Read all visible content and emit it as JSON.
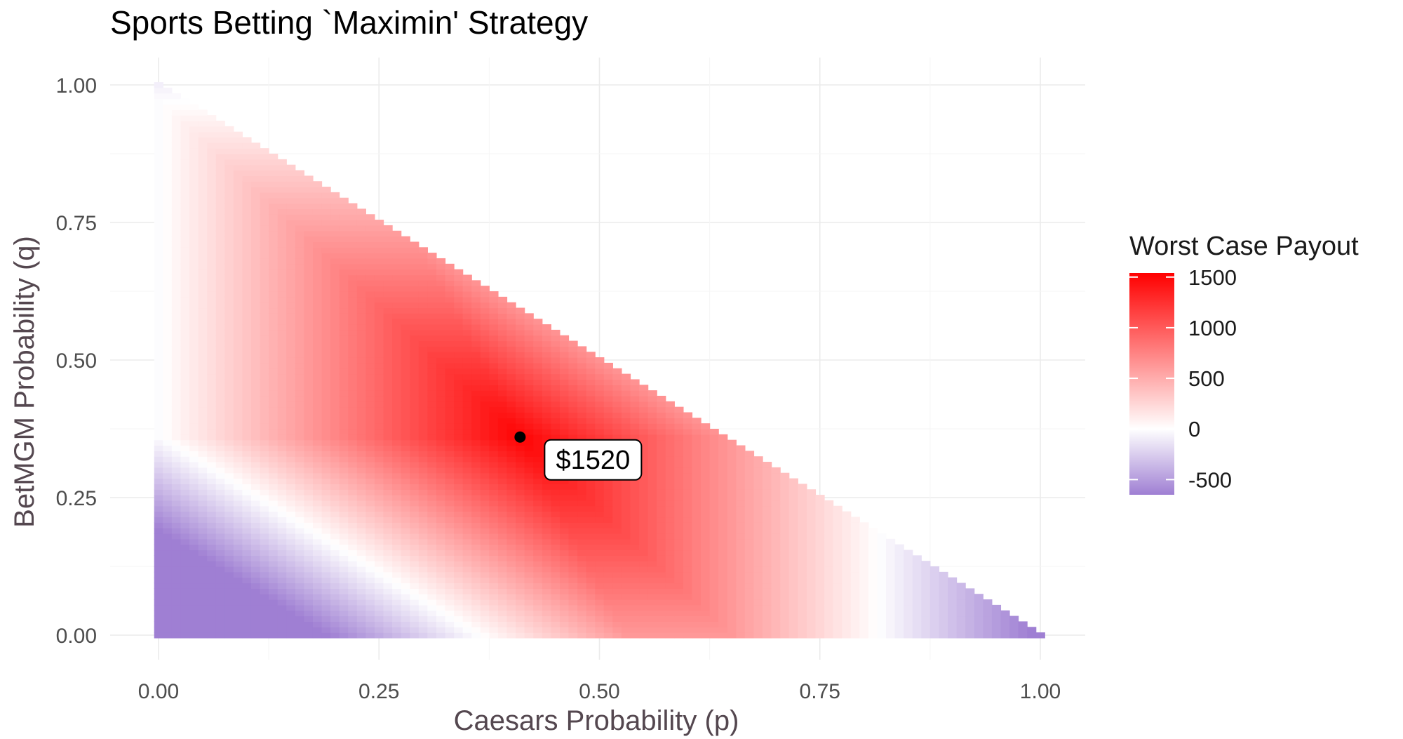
{
  "chart_data": {
    "type": "heatmap",
    "title": "Sports Betting `Maximin' Strategy",
    "xlabel": "Caesars Probability (p)",
    "ylabel": "BetMGM Probability (q)",
    "xlim": [
      0,
      1
    ],
    "ylim": [
      0,
      1
    ],
    "x_ticks": [
      "0.00",
      "0.25",
      "0.50",
      "0.75",
      "1.00"
    ],
    "y_ticks": [
      "0.00",
      "0.25",
      "0.50",
      "0.75",
      "1.00"
    ],
    "grid": true,
    "region": "p + q <= 1",
    "grid_step": 0.01,
    "value_formula": "min(1520 - 3750*|p-0.41|, 1520 - 2500*|q-0.36|, 1520 - 3750*|(p+q)-0.77|) clipped to [-650, 1540]",
    "optimum": {
      "p": 0.41,
      "q": 0.36,
      "value": 1520
    },
    "annotation": "$1520",
    "legend": {
      "title": "Worst Case Payout",
      "position": "right",
      "range": [
        -650,
        1540
      ],
      "ticks": [
        1500,
        1000,
        500,
        0,
        -500
      ],
      "tick_labels": [
        "1500",
        "1000",
        "500",
        "0",
        "-500"
      ]
    },
    "colors": {
      "high": "#ff0000",
      "mid": "#ffffff",
      "low": "#9f7fd3",
      "point": "#000000",
      "grid": "#ebebeb"
    }
  }
}
